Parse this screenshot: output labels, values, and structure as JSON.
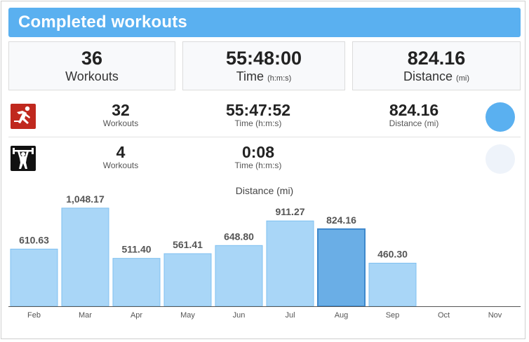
{
  "header": {
    "title": "Completed workouts"
  },
  "summary": {
    "workouts": {
      "value": "36",
      "label": "Workouts"
    },
    "time": {
      "value": "55:48:00",
      "label": "Time",
      "unit": "(h:m:s)"
    },
    "distance": {
      "value": "824.16",
      "label": "Distance",
      "unit": "(mi)"
    }
  },
  "activities": [
    {
      "icon": "running-person-icon",
      "icon_color": "#c0281e",
      "workouts": {
        "value": "32",
        "label": "Workouts"
      },
      "time": {
        "value": "55:47:52",
        "label": "Time (h:m:s)"
      },
      "distance": {
        "value": "824.16",
        "label": "Distance (mi)"
      },
      "dot_color": "#5ab0f0"
    },
    {
      "icon": "weightlifting-icon",
      "icon_color": "#111111",
      "workouts": {
        "value": "4",
        "label": "Workouts"
      },
      "time": {
        "value": "0:08",
        "label": "Time (h:m:s)"
      },
      "dot_color": "#eef3fa"
    }
  ],
  "chart_data": {
    "type": "bar",
    "title": "Distance (mi)",
    "categories": [
      "Feb",
      "Mar",
      "Apr",
      "May",
      "Jun",
      "Jul",
      "Aug",
      "Sep",
      "Oct",
      "Nov"
    ],
    "values": [
      610.63,
      1048.17,
      511.4,
      561.41,
      648.8,
      911.27,
      824.16,
      460.3,
      null,
      null
    ],
    "value_labels": [
      "610.63",
      "1,048.17",
      "511.40",
      "561.41",
      "648.80",
      "911.27",
      "824.16",
      "460.30",
      "",
      ""
    ],
    "highlighted_category": "Aug",
    "ylim": [
      0,
      1100
    ],
    "grid": false,
    "colors": {
      "bar": "#a9d6f7",
      "bar_border": "#7fc0f0",
      "highlight": "#6aaee6",
      "highlight_border": "#3d88cc",
      "axis": "#555555"
    }
  }
}
